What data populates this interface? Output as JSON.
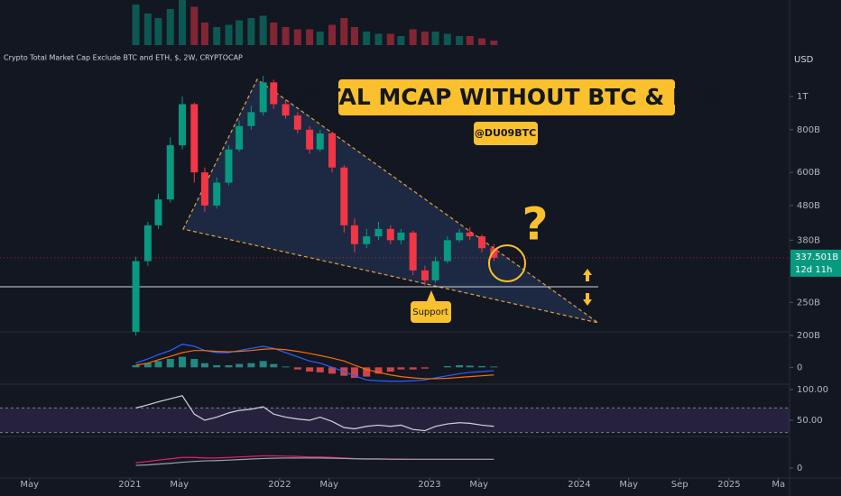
{
  "chart_data": {
    "type": "candlestick",
    "title": "Crypto Total Market Cap Exclude BTC and ETH, $, 2W, CRYPTOCAP",
    "currency": "USD",
    "log_scale": true,
    "up_color": "#089981",
    "down_color": "#f23645",
    "annotations": {
      "banner": "TOTAL MCAP WITHOUT BTC & ETH",
      "handle": "@DU09BTC",
      "question": "?",
      "support": "Support"
    },
    "last_price": {
      "value": 337.501,
      "label": "337.501B"
    },
    "countdown": "12d 11h",
    "ylim": [
      200,
      1916
    ],
    "yticks": [
      {
        "value": 1000,
        "label": "1T"
      },
      {
        "value": 800,
        "label": "800B"
      },
      {
        "value": 600,
        "label": "600B"
      },
      {
        "value": 480,
        "label": "480B"
      },
      {
        "value": 380,
        "label": "380B"
      },
      {
        "value": 250,
        "label": "250B"
      },
      {
        "value": 200,
        "label": "200B"
      }
    ],
    "xlim": [
      2020.133,
      2025.404
    ],
    "xticks": [
      {
        "value": 2020.33,
        "label": "May"
      },
      2021,
      {
        "value": 2021.33,
        "label": "May"
      },
      2022,
      {
        "value": 2022.33,
        "label": "May"
      },
      2023,
      {
        "value": 2023.33,
        "label": "May"
      },
      2024,
      {
        "value": 2024.33,
        "label": "May"
      },
      {
        "value": 2024.67,
        "label": "Sep"
      },
      2025,
      {
        "value": 2025.33,
        "label": "Ma"
      }
    ],
    "candles": {
      "x": [
        2021.04,
        2021.12,
        2021.19,
        2021.27,
        2021.35,
        2021.43,
        2021.5,
        2021.58,
        2021.66,
        2021.73,
        2021.81,
        2021.89,
        2021.96,
        2022.04,
        2022.12,
        2022.2,
        2022.27,
        2022.35,
        2022.43,
        2022.5,
        2022.58,
        2022.66,
        2022.74,
        2022.81,
        2022.89,
        2022.97,
        2023.04,
        2023.12,
        2023.2,
        2023.27,
        2023.35,
        2023.43
      ],
      "open": [
        205,
        330,
        420,
        500,
        720,
        950,
        600,
        480,
        560,
        700,
        820,
        900,
        1100,
        950,
        880,
        800,
        700,
        780,
        620,
        420,
        370,
        390,
        410,
        380,
        400,
        310,
        290,
        330,
        380,
        400,
        390,
        360
      ],
      "high": [
        340,
        430,
        520,
        760,
        1000,
        960,
        620,
        580,
        720,
        850,
        940,
        1150,
        1120,
        980,
        900,
        820,
        800,
        790,
        630,
        440,
        410,
        430,
        420,
        410,
        405,
        320,
        340,
        390,
        410,
        415,
        395,
        370
      ],
      "low": [
        200,
        320,
        410,
        490,
        700,
        560,
        460,
        470,
        550,
        690,
        800,
        880,
        920,
        860,
        780,
        680,
        690,
        600,
        400,
        350,
        360,
        380,
        370,
        370,
        300,
        280,
        285,
        325,
        375,
        380,
        350,
        330
      ],
      "close": [
        330,
        420,
        500,
        720,
        950,
        600,
        480,
        560,
        700,
        820,
        900,
        1100,
        950,
        880,
        800,
        700,
        780,
        620,
        420,
        370,
        390,
        410,
        380,
        400,
        310,
        290,
        330,
        380,
        400,
        390,
        360,
        337.501
      ]
    },
    "volume": {
      "ylim": [
        0,
        100
      ],
      "values": [
        90,
        70,
        60,
        80,
        100,
        85,
        50,
        40,
        45,
        55,
        60,
        65,
        50,
        40,
        35,
        35,
        30,
        45,
        60,
        40,
        30,
        25,
        25,
        20,
        35,
        30,
        30,
        25,
        20,
        20,
        15,
        10
      ]
    },
    "macd": {
      "ylim": [
        -40,
        80
      ],
      "yticks": [
        0
      ],
      "hist": [
        5,
        10,
        15,
        20,
        25,
        20,
        10,
        5,
        5,
        8,
        10,
        15,
        8,
        2,
        -5,
        -10,
        -12,
        -15,
        -20,
        -25,
        -22,
        -15,
        -10,
        -5,
        -5,
        -3,
        0,
        3,
        5,
        4,
        3,
        2
      ],
      "macd": [
        10,
        20,
        30,
        40,
        55,
        50,
        40,
        35,
        35,
        40,
        45,
        50,
        45,
        35,
        25,
        15,
        10,
        0,
        -10,
        -20,
        -30,
        -32,
        -33,
        -33,
        -32,
        -30,
        -25,
        -20,
        -15,
        -12,
        -10,
        -8
      ],
      "signal": [
        5,
        10,
        18,
        26,
        35,
        40,
        40,
        38,
        37,
        38,
        40,
        43,
        44,
        42,
        38,
        33,
        28,
        22,
        15,
        5,
        -5,
        -12,
        -18,
        -22,
        -25,
        -27,
        -27,
        -26,
        -24,
        -22,
        -20,
        -18
      ]
    },
    "rsi": {
      "ylim": [
        23.5,
        108.8
      ],
      "band": [
        30,
        70
      ],
      "yticks": [
        {
          "value": 100,
          "label": "100.00"
        },
        {
          "value": 50,
          "label": "50.00"
        }
      ],
      "values": [
        70,
        75,
        80,
        85,
        90,
        60,
        50,
        55,
        62,
        66,
        68,
        72,
        60,
        55,
        52,
        50,
        55,
        48,
        38,
        36,
        40,
        42,
        40,
        42,
        35,
        33,
        40,
        44,
        46,
        45,
        42,
        40
      ]
    },
    "lower": {
      "ylim": [
        -37.5,
        112.5
      ],
      "yticks": [
        0
      ],
      "fast": [
        20,
        25,
        30,
        35,
        40,
        40,
        38,
        38,
        40,
        42,
        44,
        46,
        46,
        45,
        44,
        42,
        42,
        40,
        38,
        36,
        35,
        35,
        34,
        34,
        33,
        33,
        33,
        33,
        33,
        33,
        33,
        33
      ],
      "slow": [
        10,
        12,
        15,
        18,
        22,
        25,
        27,
        28,
        30,
        32,
        34,
        36,
        37,
        38,
        38,
        38,
        38,
        37,
        36,
        35,
        34,
        34,
        33,
        33,
        33,
        33,
        33,
        33,
        33,
        33,
        33,
        33
      ]
    }
  }
}
